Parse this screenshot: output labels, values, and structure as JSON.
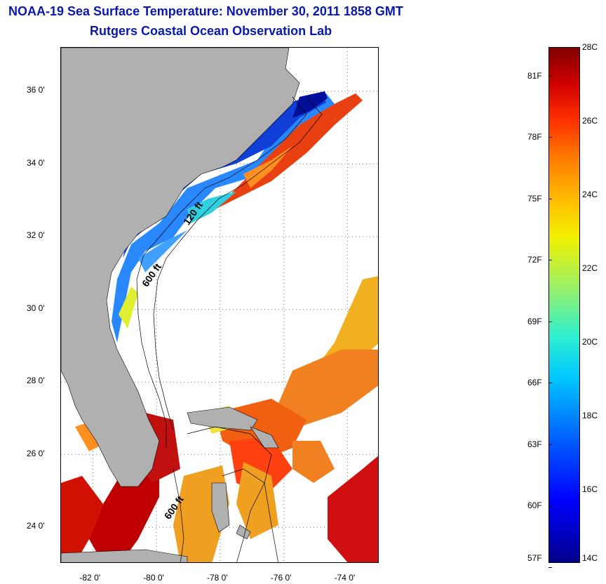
{
  "title_line1": "NOAA-19 Sea Surface Temperature:  November 30, 2011 1858 GMT",
  "title_line2": "Rutgers Coastal Ocean Observation Lab",
  "map": {
    "lat_range": [
      23.0,
      37.2
    ],
    "lon_range": [
      -83.0,
      -73.0
    ],
    "grid": true,
    "land_color": "#b0b0b0",
    "lat_labels": [
      "36 0'",
      "34 0'",
      "32 0'",
      "30 0'",
      "28 0'",
      "26 0'",
      "24 0'"
    ],
    "lat_values": [
      36,
      34,
      32,
      30,
      28,
      26,
      24
    ],
    "lon_labels": [
      "-82 0'",
      "-80 0'",
      "-78 0'",
      "-76 0'",
      "-74 0'"
    ],
    "lon_values": [
      -82,
      -80,
      -78,
      -76,
      -74
    ],
    "contour_labels": [
      {
        "text": "120 ft",
        "lon": -79.0,
        "lat": 32.3
      },
      {
        "text": "600 ft",
        "lon": -80.3,
        "lat": 30.6
      },
      {
        "text": "600 ft",
        "lon": -79.6,
        "lat": 24.2
      }
    ]
  },
  "colorbar": {
    "celsius_labels": [
      "28C",
      "26C",
      "24C",
      "22C",
      "20C",
      "18C",
      "16C",
      "14C"
    ],
    "celsius_values": [
      28,
      26,
      24,
      22,
      20,
      18,
      16,
      14
    ],
    "fahrenheit_labels": [
      "81F",
      "78F",
      "75F",
      "72F",
      "69F",
      "66F",
      "63F",
      "60F",
      "57F"
    ],
    "fahrenheit_values": [
      81,
      78,
      75,
      72,
      69,
      66,
      63,
      60,
      57
    ],
    "min_c": 14,
    "max_c": 28
  }
}
